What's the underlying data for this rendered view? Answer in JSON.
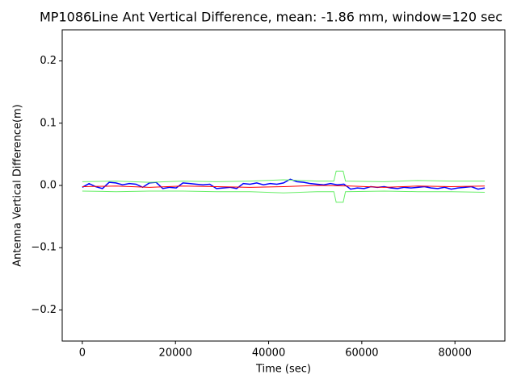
{
  "chart_data": {
    "type": "line",
    "title": "MP1086Line Ant Vertical Difference, mean: -1.86 mm, window=120 sec",
    "xlabel": "Time (sec)",
    "ylabel": "Antenna Vertical Difference(m)",
    "xlim": [
      -4320,
      90720
    ],
    "ylim": [
      -0.25,
      0.25
    ],
    "xticks": [
      0,
      20000,
      40000,
      60000,
      80000
    ],
    "yticks": [
      {
        "value": -0.2,
        "label": "−0.2"
      },
      {
        "value": -0.1,
        "label": "−0.1"
      },
      {
        "value": 0,
        "label": "0.0"
      },
      0.1,
      0.2
    ],
    "series": [
      {
        "color": "#0000ff",
        "x": [
          0,
          1440,
          2880,
          4320,
          5760,
          7200,
          8640,
          10080,
          11520,
          12960,
          14400,
          15840,
          17280,
          18720,
          20160,
          21600,
          23040,
          24480,
          25920,
          27360,
          28800,
          30240,
          31680,
          33120,
          34560,
          36000,
          37440,
          38880,
          40320,
          41760,
          43200,
          44640,
          46080,
          47520,
          48960,
          50400,
          51840,
          53280,
          54720,
          56160,
          57600,
          59040,
          60480,
          61920,
          63360,
          64800,
          66240,
          67680,
          69120,
          70560,
          72000,
          73440,
          74880,
          76320,
          77760,
          79200,
          80640,
          82080,
          83520,
          84960,
          86400
        ],
        "values": [
          -0.003,
          0.003,
          -0.002,
          -0.005,
          0.005,
          0.004,
          0.001,
          0.003,
          0.002,
          -0.003,
          0.004,
          0.005,
          -0.005,
          -0.003,
          -0.004,
          0.004,
          0.003,
          0.002,
          0.001,
          0.002,
          -0.005,
          -0.004,
          -0.003,
          -0.005,
          0.003,
          0.002,
          0.004,
          0.001,
          0.003,
          0.002,
          0.004,
          0.01,
          0.006,
          0.005,
          0.003,
          0.002,
          0.001,
          0.003,
          0.001,
          0.002,
          -0.006,
          -0.004,
          -0.005,
          -0.002,
          -0.003,
          -0.002,
          -0.004,
          -0.005,
          -0.003,
          -0.004,
          -0.003,
          -0.002,
          -0.004,
          -0.005,
          -0.003,
          -0.006,
          -0.004,
          -0.003,
          -0.002,
          -0.006,
          -0.004
        ]
      },
      {
        "color": "#66ee66",
        "x": [
          0,
          7200,
          14400,
          21600,
          28800,
          36000,
          43200,
          50400,
          54000,
          54500,
          56000,
          56500,
          64800,
          72000,
          79200,
          86400
        ],
        "values": [
          0.006,
          0.007,
          0.005,
          0.007,
          0.006,
          0.007,
          0.009,
          0.007,
          0.007,
          0.023,
          0.023,
          0.007,
          0.006,
          0.008,
          0.007,
          0.007
        ]
      },
      {
        "color": "#66ee66",
        "x": [
          0,
          7200,
          14400,
          21600,
          28800,
          36000,
          43200,
          50400,
          54000,
          54500,
          56000,
          56500,
          64800,
          72000,
          79200,
          86400
        ],
        "values": [
          -0.009,
          -0.01,
          -0.009,
          -0.009,
          -0.01,
          -0.01,
          -0.012,
          -0.01,
          -0.01,
          -0.027,
          -0.027,
          -0.01,
          -0.009,
          -0.01,
          -0.01,
          -0.011
        ]
      },
      {
        "color": "#ff0000",
        "x": [
          0,
          7200,
          14400,
          21600,
          28800,
          36000,
          43200,
          50400,
          57600,
          64800,
          72000,
          79200,
          86400
        ],
        "values": [
          -0.002,
          -0.001,
          -0.003,
          -0.001,
          -0.002,
          -0.003,
          -0.002,
          0.0,
          -0.001,
          -0.003,
          -0.001,
          -0.002,
          -0.001
        ]
      }
    ]
  }
}
